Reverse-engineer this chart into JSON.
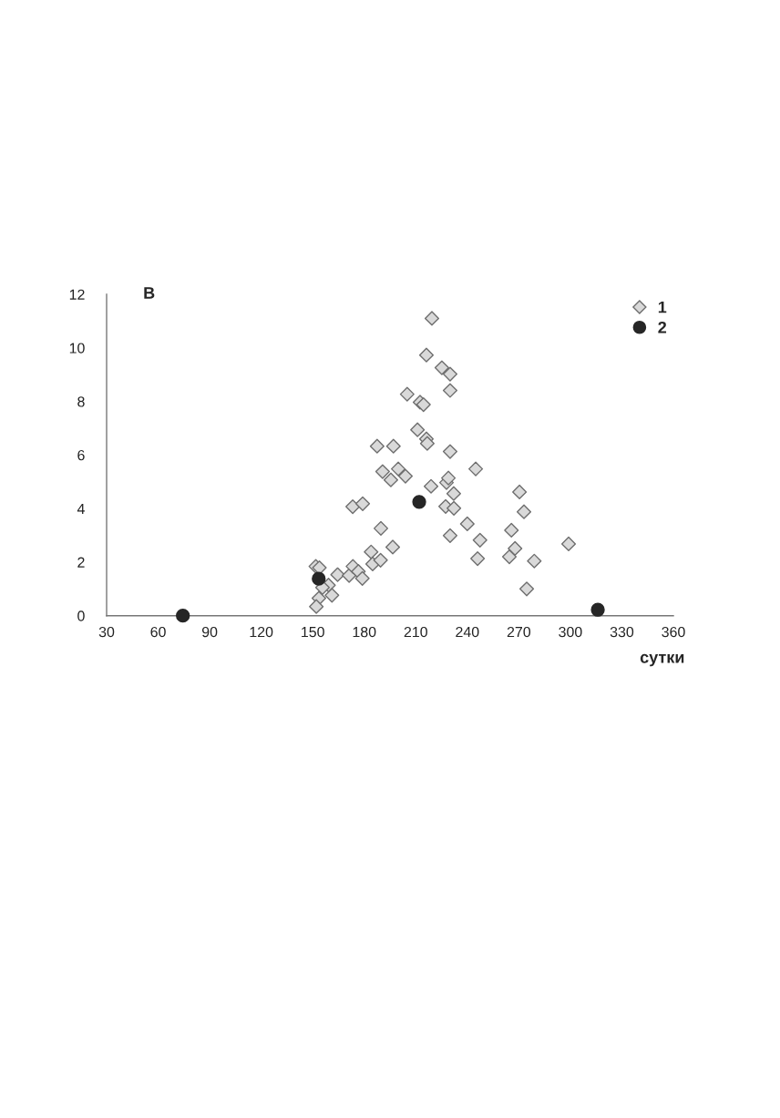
{
  "chart_data": {
    "type": "scatter",
    "title": "В",
    "xlabel": "сутки",
    "xlim": [
      30,
      360
    ],
    "xticks": [
      30,
      60,
      90,
      120,
      150,
      180,
      210,
      240,
      270,
      300,
      330,
      360
    ],
    "ylim": [
      0,
      12
    ],
    "yticks": [
      0,
      2,
      4,
      6,
      8,
      10,
      12
    ],
    "grid": false,
    "legend": "top right",
    "series": [
      {
        "name": "1",
        "color": "#d9d9d9",
        "marker": "diamond",
        "x": [
          219.4,
          216.2,
          225.2,
          230,
          230,
          205,
          212.5,
          214.5,
          211,
          216.2,
          216.7,
          187.5,
          197,
          230,
          199.8,
          190.7,
          204,
          195.5,
          244.9,
          218.9,
          227.9,
          229,
          232.1,
          270.4,
          173.3,
          179.1,
          227.4,
          232.2,
          273,
          189.7,
          265.7,
          240,
          247.4,
          230,
          299,
          267.8,
          196.6,
          184,
          246,
          264.5,
          279,
          184.9,
          189.5,
          151.8,
          153.9,
          164.5,
          171.2,
          173.4,
          176.6,
          178.9,
          159.2,
          155.7,
          161.2,
          153.6,
          152.1,
          274.6
        ],
        "values": [
          11.1,
          9.73,
          9.26,
          9.02,
          8.41,
          8.27,
          7.97,
          7.88,
          6.94,
          6.6,
          6.43,
          6.33,
          6.33,
          6.13,
          5.48,
          5.38,
          5.21,
          5.07,
          5.48,
          4.83,
          4.97,
          5.14,
          4.56,
          4.62,
          4.07,
          4.18,
          4.08,
          4.01,
          3.88,
          3.26,
          3.19,
          3.43,
          2.82,
          2.99,
          2.68,
          2.51,
          2.56,
          2.38,
          2.13,
          2.2,
          2.04,
          1.93,
          2.07,
          1.84,
          1.79,
          1.53,
          1.5,
          1.84,
          1.65,
          1.39,
          1.14,
          1.05,
          0.76,
          0.65,
          0.34,
          1.0
        ]
      },
      {
        "name": "2",
        "color": "#262626",
        "marker": "circle",
        "x": [
          74.4,
          153.5,
          212,
          316
        ],
        "values": [
          0,
          1.38,
          4.25,
          0.22
        ]
      }
    ]
  }
}
